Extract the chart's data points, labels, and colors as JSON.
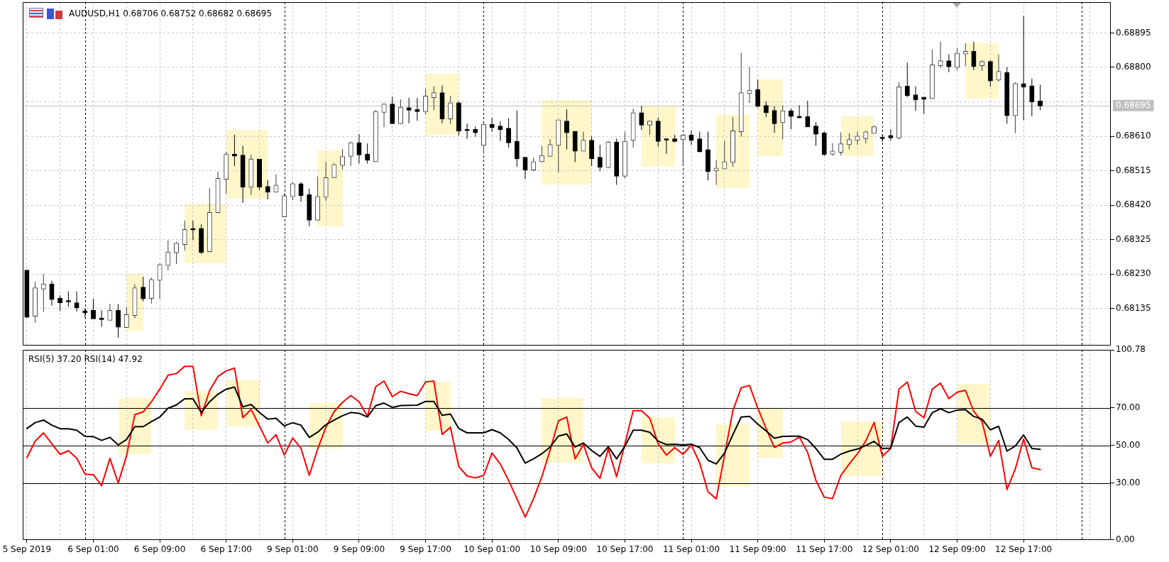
{
  "chart_data": [
    {
      "type": "candlestick",
      "title": "AUDUSD,H1 0.68706 0.68752 0.68682 0.68695",
      "categories": [
        null,
        null,
        null,
        null,
        null,
        null,
        null,
        null,
        null,
        null,
        null,
        null,
        null,
        null,
        null,
        null,
        null,
        null,
        null,
        null,
        null,
        null,
        null,
        null,
        null,
        null,
        null,
        null,
        null,
        null,
        null,
        null,
        null,
        null,
        null,
        null,
        null,
        null,
        null,
        null,
        null,
        null,
        null,
        null,
        null,
        null,
        null,
        null,
        null,
        null,
        null,
        null,
        null,
        null,
        null,
        null,
        null,
        null,
        null,
        null,
        null,
        null,
        null,
        null,
        null,
        null,
        null,
        null,
        null,
        null,
        null,
        null,
        null,
        null,
        null,
        null,
        null,
        null,
        null,
        null,
        null,
        null,
        null,
        null,
        null,
        null,
        null,
        null,
        null,
        null,
        null,
        null,
        null,
        null,
        null,
        null,
        null,
        null,
        null,
        null,
        null,
        null,
        null,
        null,
        null,
        null,
        null,
        null,
        null,
        null,
        null,
        null,
        null,
        null,
        null,
        null,
        null,
        null,
        null,
        null,
        null,
        null,
        null,
        null,
        null,
        null,
        null,
        null,
        null,
        null,
        null
      ],
      "ohlc": [
        [
          0.6824,
          0.68242,
          0.6811,
          0.68112
        ],
        [
          0.68115,
          0.68209,
          0.68096,
          0.68191
        ],
        [
          0.6819,
          0.6823,
          0.68126,
          0.68202
        ],
        [
          0.68202,
          0.68212,
          0.68143,
          0.68161
        ],
        [
          0.68162,
          0.68172,
          0.68129,
          0.68152
        ],
        [
          0.68156,
          0.68182,
          0.6814,
          0.68155
        ],
        [
          0.6815,
          0.68182,
          0.68127,
          0.68138
        ],
        [
          0.68127,
          0.68135,
          0.6811,
          0.68125
        ],
        [
          0.68129,
          0.68162,
          0.68107,
          0.68108
        ],
        [
          0.68108,
          0.68131,
          0.68085,
          0.68106
        ],
        [
          0.68104,
          0.68148,
          0.68103,
          0.68129
        ],
        [
          0.68129,
          0.68148,
          0.68055,
          0.68085
        ],
        [
          0.68084,
          0.68138,
          0.68082,
          0.68117
        ],
        [
          0.68117,
          0.68202,
          0.68108,
          0.68191
        ],
        [
          0.68193,
          0.68223,
          0.68155,
          0.68163
        ],
        [
          0.68164,
          0.68221,
          0.68149,
          0.68214
        ],
        [
          0.68214,
          0.6826,
          0.68161,
          0.68255
        ],
        [
          0.68255,
          0.68323,
          0.6824,
          0.6829
        ],
        [
          0.6829,
          0.68319,
          0.68258,
          0.68314
        ],
        [
          0.68313,
          0.68378,
          0.68295,
          0.68352
        ],
        [
          0.68355,
          0.68378,
          0.68324,
          0.68353
        ],
        [
          0.68355,
          0.68367,
          0.68286,
          0.68291
        ],
        [
          0.68293,
          0.68468,
          0.68291,
          0.68399
        ],
        [
          0.68401,
          0.68513,
          0.68398,
          0.68493
        ],
        [
          0.68493,
          0.68567,
          0.68452,
          0.6856
        ],
        [
          0.6856,
          0.68614,
          0.68528,
          0.68557
        ],
        [
          0.68557,
          0.68584,
          0.68427,
          0.68471
        ],
        [
          0.68471,
          0.6856,
          0.68448,
          0.68546
        ],
        [
          0.68546,
          0.68547,
          0.68462,
          0.68471
        ],
        [
          0.68471,
          0.6849,
          0.68436,
          0.68457
        ],
        [
          0.68457,
          0.68505,
          0.68455,
          0.68474
        ],
        [
          0.68389,
          0.68452,
          0.68387,
          0.68445
        ],
        [
          0.68445,
          0.68484,
          0.68434,
          0.68478
        ],
        [
          0.68478,
          0.68484,
          0.68429,
          0.68448
        ],
        [
          0.68448,
          0.68466,
          0.68362,
          0.6838
        ],
        [
          0.6838,
          0.68499,
          0.68378,
          0.68443
        ],
        [
          0.68443,
          0.6854,
          0.68432,
          0.68495
        ],
        [
          0.68497,
          0.68537,
          0.68495,
          0.68531
        ],
        [
          0.68531,
          0.68575,
          0.68518,
          0.68553
        ],
        [
          0.68556,
          0.68595,
          0.68528,
          0.68591
        ],
        [
          0.68591,
          0.68616,
          0.68535,
          0.6856
        ],
        [
          0.6856,
          0.6859,
          0.68535,
          0.68545
        ],
        [
          0.68541,
          0.68682,
          0.68539,
          0.68677
        ],
        [
          0.68677,
          0.68701,
          0.68635,
          0.68698
        ],
        [
          0.68698,
          0.68719,
          0.68644,
          0.68646
        ],
        [
          0.68646,
          0.68712,
          0.68644,
          0.68689
        ],
        [
          0.68688,
          0.68716,
          0.68646,
          0.68683
        ],
        [
          0.68683,
          0.68716,
          0.68653,
          0.68679
        ],
        [
          0.68679,
          0.68741,
          0.6867,
          0.6872
        ],
        [
          0.68718,
          0.68748,
          0.68682,
          0.68729
        ],
        [
          0.68729,
          0.6875,
          0.68646,
          0.68659
        ],
        [
          0.68659,
          0.68722,
          0.68644,
          0.68701
        ],
        [
          0.68701,
          0.68706,
          0.68612,
          0.68626
        ],
        [
          0.68628,
          0.68645,
          0.68603,
          0.68627
        ],
        [
          0.68628,
          0.68637,
          0.68609,
          0.68621
        ],
        [
          0.68586,
          0.68646,
          0.68562,
          0.68642
        ],
        [
          0.68642,
          0.68661,
          0.68623,
          0.68635
        ],
        [
          0.68637,
          0.68651,
          0.68597,
          0.6863
        ],
        [
          0.68631,
          0.6866,
          0.68579,
          0.68593
        ],
        [
          0.68595,
          0.68681,
          0.68526,
          0.68549
        ],
        [
          0.68551,
          0.68553,
          0.68492,
          0.68518
        ],
        [
          0.68518,
          0.68551,
          0.68514,
          0.68539
        ],
        [
          0.68541,
          0.68583,
          0.68539,
          0.68556
        ],
        [
          0.68556,
          0.68602,
          0.68554,
          0.68586
        ],
        [
          0.68586,
          0.68655,
          0.68511,
          0.68654
        ],
        [
          0.68651,
          0.68684,
          0.68574,
          0.68621
        ],
        [
          0.68623,
          0.68624,
          0.68539,
          0.6857
        ],
        [
          0.6857,
          0.68623,
          0.68569,
          0.68598
        ],
        [
          0.68598,
          0.6861,
          0.68528,
          0.68549
        ],
        [
          0.68551,
          0.68586,
          0.68514,
          0.68526
        ],
        [
          0.68525,
          0.68598,
          0.68521,
          0.68593
        ],
        [
          0.68593,
          0.68604,
          0.68476,
          0.68501
        ],
        [
          0.68501,
          0.68623,
          0.68494,
          0.68595
        ],
        [
          0.686,
          0.68686,
          0.68579,
          0.68674
        ],
        [
          0.68674,
          0.68694,
          0.68628,
          0.68642
        ],
        [
          0.68642,
          0.68653,
          0.68614,
          0.68651
        ],
        [
          0.68651,
          0.68661,
          0.68582,
          0.68597
        ],
        [
          0.68602,
          0.68604,
          0.68562,
          0.68601
        ],
        [
          0.68602,
          0.68614,
          0.68593,
          0.68597
        ],
        [
          0.68602,
          0.68614,
          0.68532,
          0.68612
        ],
        [
          0.68612,
          0.68626,
          0.68586,
          0.686
        ],
        [
          0.68602,
          0.68623,
          0.68567,
          0.68568
        ],
        [
          0.68572,
          0.68623,
          0.68489,
          0.68514
        ],
        [
          0.68516,
          0.68545,
          0.68476,
          0.68521
        ],
        [
          0.68521,
          0.68598,
          0.6852,
          0.68539
        ],
        [
          0.68539,
          0.68663,
          0.68526,
          0.68624
        ],
        [
          0.68624,
          0.6884,
          0.68609,
          0.68729
        ],
        [
          0.68729,
          0.68801,
          0.68702,
          0.68736
        ],
        [
          0.68738,
          0.68766,
          0.68689,
          0.68694
        ],
        [
          0.68694,
          0.68706,
          0.68663,
          0.68676
        ],
        [
          0.6868,
          0.68693,
          0.6862,
          0.68646
        ],
        [
          0.68649,
          0.68696,
          0.68602,
          0.68679
        ],
        [
          0.68679,
          0.68687,
          0.6863,
          0.68666
        ],
        [
          0.68664,
          0.68696,
          0.6866,
          0.68662
        ],
        [
          0.68663,
          0.68708,
          0.68635,
          0.68637
        ],
        [
          0.68637,
          0.68649,
          0.68584,
          0.68617
        ],
        [
          0.68618,
          0.68623,
          0.68556,
          0.68561
        ],
        [
          0.68562,
          0.68591,
          0.68556,
          0.68568
        ],
        [
          0.68567,
          0.68621,
          0.68558,
          0.68588
        ],
        [
          0.68588,
          0.68618,
          0.68574,
          0.686
        ],
        [
          0.686,
          0.68623,
          0.68586,
          0.68609
        ],
        [
          0.68605,
          0.68626,
          0.6859,
          0.68621
        ],
        [
          0.68619,
          0.6864,
          0.68618,
          0.68635
        ],
        [
          0.68606,
          0.68616,
          0.68595,
          0.68605
        ],
        [
          0.68611,
          0.6863,
          0.68598,
          0.68607
        ],
        [
          0.68607,
          0.6876,
          0.68602,
          0.68745
        ],
        [
          0.68747,
          0.68813,
          0.68718,
          0.68723
        ],
        [
          0.68723,
          0.68748,
          0.6868,
          0.68712
        ],
        [
          0.68717,
          0.68718,
          0.68672,
          0.68713
        ],
        [
          0.68715,
          0.6885,
          0.68712,
          0.68806
        ],
        [
          0.68806,
          0.68871,
          0.68799,
          0.68817
        ],
        [
          0.68817,
          0.68836,
          0.68787,
          0.68803
        ],
        [
          0.68801,
          0.68854,
          0.68792,
          0.68838
        ],
        [
          0.68838,
          0.68867,
          0.68804,
          0.68843
        ],
        [
          0.68843,
          0.68871,
          0.68792,
          0.68804
        ],
        [
          0.68806,
          0.6882,
          0.6879,
          0.68815
        ],
        [
          0.68815,
          0.6882,
          0.68747,
          0.68764
        ],
        [
          0.68766,
          0.68836,
          0.68761,
          0.68788
        ],
        [
          0.68785,
          0.68801,
          0.68645,
          0.68668
        ],
        [
          0.68668,
          0.68759,
          0.68619,
          0.68754
        ],
        [
          0.68754,
          0.68942,
          0.68654,
          0.68747
        ],
        [
          0.68748,
          0.68769,
          0.68665,
          0.68706
        ],
        [
          0.68706,
          0.68752,
          0.68682,
          0.68695
        ],
        null,
        null,
        null,
        null,
        null,
        null,
        null,
        null
      ],
      "ylim": [
        0.68033,
        0.6898
      ],
      "yticks": [
        0.68135,
        {
          "value": 0.6823,
          "label": "0.68230"
        },
        0.68325,
        {
          "value": 0.6842,
          "label": "0.68420"
        },
        0.68515,
        {
          "value": 0.6861,
          "label": "0.68610"
        },
        {
          "value": 0.68705,
          "label": null
        },
        {
          "value": 0.688,
          "label": "0.68800"
        },
        0.68895
      ],
      "grid": true,
      "ref_lines": [
        {
          "axis": "y",
          "value": 0.68695,
          "label": "0.68695",
          "color": "#c0c0c0"
        }
      ]
    },
    {
      "type": "line",
      "title": "RSI(5) 37.20 RSI(14) 47.92",
      "categories": [
        "5 Sep 2019",
        null,
        null,
        null,
        null,
        null,
        null,
        null,
        "6 Sep 01:00",
        null,
        null,
        null,
        null,
        null,
        null,
        null,
        "6 Sep 09:00",
        null,
        null,
        null,
        null,
        null,
        null,
        null,
        "6 Sep 17:00",
        null,
        null,
        null,
        null,
        null,
        null,
        null,
        "9 Sep 01:00",
        null,
        null,
        null,
        null,
        null,
        null,
        null,
        "9 Sep 09:00",
        null,
        null,
        null,
        null,
        null,
        null,
        null,
        "9 Sep 17:00",
        null,
        null,
        null,
        null,
        null,
        null,
        null,
        "10 Sep 01:00",
        null,
        null,
        null,
        null,
        null,
        null,
        null,
        "10 Sep 09:00",
        null,
        null,
        null,
        null,
        null,
        null,
        null,
        "10 Sep 17:00",
        null,
        null,
        null,
        null,
        null,
        null,
        null,
        "11 Sep 01:00",
        null,
        null,
        null,
        null,
        null,
        null,
        null,
        "11 Sep 09:00",
        null,
        null,
        null,
        null,
        null,
        null,
        null,
        "11 Sep 17:00",
        null,
        null,
        null,
        null,
        null,
        null,
        null,
        "12 Sep 01:00",
        null,
        null,
        null,
        null,
        null,
        null,
        null,
        "12 Sep 09:00",
        null,
        null,
        null,
        null,
        null,
        null,
        null,
        "12 Sep 17:00",
        null,
        null,
        null,
        null,
        null,
        null,
        null,
        null,
        null,
        null
      ],
      "series": [
        {
          "color": "#ff0000",
          "values": [
            43.5,
            52.3,
            56.7,
            50.9,
            45.3,
            47.2,
            43.3,
            34.8,
            34.5,
            28.7,
            43.1,
            30.1,
            44.5,
            66.4,
            67.8,
            73.2,
            79.9,
            87.3,
            88.2,
            92.0,
            92.0,
            65.8,
            79.2,
            86.6,
            89.6,
            91.1,
            64.8,
            69.1,
            60.4,
            51.3,
            55.7,
            44.9,
            54.0,
            48.5,
            34.1,
            48.0,
            59.7,
            68.0,
            72.9,
            76.5,
            73.2,
            65.5,
            81.2,
            84.2,
            75.9,
            78.8,
            77.5,
            76.5,
            83.7,
            84.2,
            55.9,
            59.7,
            38.8,
            33.8,
            32.8,
            34.1,
            46.0,
            40.2,
            31.4,
            21.7,
            11.9,
            21.7,
            33.4,
            47.6,
            63.1,
            65.1,
            42.9,
            50.5,
            38.1,
            32.5,
            48.2,
            33.4,
            50.9,
            68.5,
            68.5,
            64.4,
            50.9,
            44.9,
            48.9,
            45.3,
            50.3,
            40.8,
            25.4,
            21.7,
            44.9,
            68.5,
            80.6,
            81.9,
            69.8,
            59.0,
            48.9,
            51.3,
            51.8,
            54.5,
            46.3,
            31.4,
            22.5,
            21.8,
            34.1,
            40.2,
            45.6,
            52.4,
            62.2,
            44.3,
            48.4,
            79.9,
            83.7,
            68.1,
            64.7,
            79.9,
            83.1,
            74.9,
            78.3,
            79.3,
            68.1,
            62.7,
            44.3,
            52.7,
            26.6,
            37.5,
            53.5,
            38.2,
            37.2,
            null,
            null,
            null,
            null,
            null,
            null,
            null,
            null
          ]
        },
        {
          "color": "#000000",
          "values": [
            59.0,
            62.1,
            63.5,
            60.8,
            58.9,
            58.9,
            58.1,
            54.8,
            54.7,
            52.7,
            54.3,
            50.3,
            53.2,
            60.0,
            60.0,
            62.7,
            65.1,
            69.8,
            71.5,
            74.8,
            74.8,
            67.5,
            73.2,
            77.2,
            79.9,
            81.0,
            70.5,
            71.8,
            67.5,
            64.0,
            64.4,
            60.4,
            62.1,
            60.8,
            54.3,
            57.0,
            61.0,
            63.5,
            65.8,
            67.5,
            67.1,
            65.1,
            71.1,
            72.5,
            70.2,
            71.2,
            71.3,
            71.4,
            73.4,
            73.4,
            66.0,
            66.7,
            59.0,
            56.7,
            56.7,
            56.7,
            58.4,
            56.7,
            53.2,
            48.7,
            40.6,
            42.9,
            45.6,
            49.2,
            55.0,
            56.1,
            49.2,
            51.3,
            47.3,
            44.2,
            49.3,
            42.9,
            49.6,
            58.1,
            58.1,
            57.0,
            52.3,
            50.5,
            50.7,
            50.3,
            50.7,
            48.9,
            42.2,
            40.2,
            46.0,
            55.7,
            65.1,
            65.5,
            61.3,
            57.7,
            53.9,
            54.8,
            54.9,
            54.9,
            53.1,
            48.4,
            42.7,
            42.7,
            45.4,
            47.0,
            48.1,
            50.0,
            52.2,
            48.4,
            48.6,
            62.2,
            65.1,
            60.3,
            59.7,
            67.4,
            69.5,
            67.4,
            68.8,
            69.0,
            65.4,
            64.0,
            58.3,
            60.2,
            47.0,
            49.7,
            55.6,
            48.4,
            47.92,
            null,
            null,
            null,
            null,
            null,
            null,
            null,
            null
          ]
        }
      ],
      "ylim": [
        0,
        100.78
      ],
      "yticks": [
        {
          "value": 0,
          "label": "0.00"
        },
        {
          "value": 30,
          "label": "30.00"
        },
        {
          "value": 50,
          "label": "50.00"
        },
        {
          "value": 70,
          "label": "70.00"
        },
        {
          "value": 100.78,
          "label": "100.78"
        }
      ],
      "grid": "x",
      "ref_lines": [
        {
          "axis": "y",
          "value": 30,
          "color": "#000000"
        },
        {
          "axis": "y",
          "value": 50,
          "color": "#000000"
        },
        {
          "axis": "y",
          "value": 70,
          "color": "#000000"
        }
      ]
    }
  ]
}
